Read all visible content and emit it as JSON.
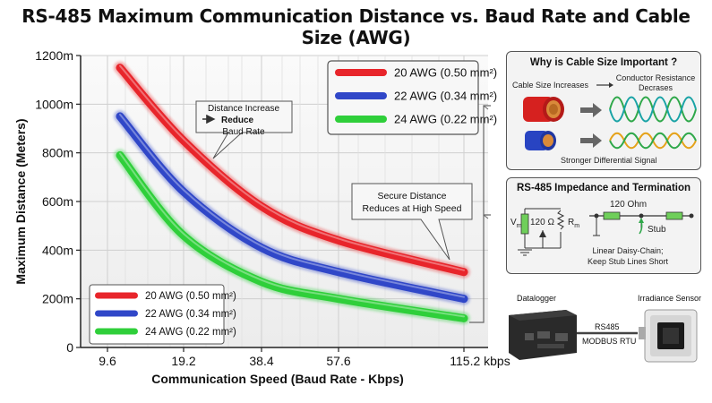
{
  "title": "RS-485 Maximum Communication Distance vs. Baud Rate and Cable Size (AWG)",
  "chart_data": {
    "type": "line",
    "title": "RS-485 Maximum Communication Distance vs. Baud Rate and Cable Size (AWG)",
    "xlabel": "Communication Speed (Baud Rate - Kbps)",
    "ylabel": "Maximum Distance (Meters)",
    "x_ticks": [
      "9.6",
      "19.2",
      "38.4",
      "57.6",
      "115.2 kbps"
    ],
    "y_ticks": [
      "0",
      "200m",
      "400m",
      "600m",
      "800m",
      "1000m",
      "1200m"
    ],
    "ylim": [
      0,
      1200
    ],
    "x": [
      9.6,
      19.2,
      38.4,
      57.6,
      115.2
    ],
    "series": [
      {
        "name": "20 AWG (0.50 mm²)",
        "color": "#e8252b",
        "values": [
          1150,
          850,
          580,
          440,
          310
        ]
      },
      {
        "name": "22 AWG (0.34 mm²)",
        "color": "#3047c8",
        "values": [
          950,
          640,
          410,
          310,
          200
        ]
      },
      {
        "name": "24 AWG (0.22 mm²)",
        "color": "#2fcf3a",
        "values": [
          790,
          460,
          270,
          200,
          120
        ]
      }
    ],
    "grid": true,
    "legend": [
      "top-right",
      "bottom-left"
    ]
  },
  "annotations": {
    "distance_increase": "Distance Increase",
    "arrow_reduce": "Reduce",
    "baud_rate": "Baud Rate",
    "secure_line1": "Secure Distance",
    "secure_line2": "Reduces at High Speed"
  },
  "panel_cable": {
    "title": "Why is Cable Size Important ?",
    "cable_increases": "Cable Size Increases",
    "resistance_line1": "Conductor Resistance",
    "resistance_line2": "Decrases",
    "stronger_signal": "Stronger Differential Signal"
  },
  "panel_impedance": {
    "title": "RS-485 Impedance and Termination",
    "vm": "V",
    "vm_sub": "m",
    "r120": "120 Ω",
    "rm": "R",
    "rm_sub": "m",
    "ohm120": "120 Ohm",
    "stub": "Stub",
    "note_line1": "Linear Daisy-Chain;",
    "note_line2": "Keep Stub Lines Short"
  },
  "devices": {
    "datalogger": "Datalogger",
    "irradiance": "Irradiance Sensor",
    "rs485": "RS485",
    "modbus": "MODBUS RTU"
  },
  "colors": {
    "red": "#e8252b",
    "blue": "#3047c8",
    "green": "#2fcf3a"
  }
}
